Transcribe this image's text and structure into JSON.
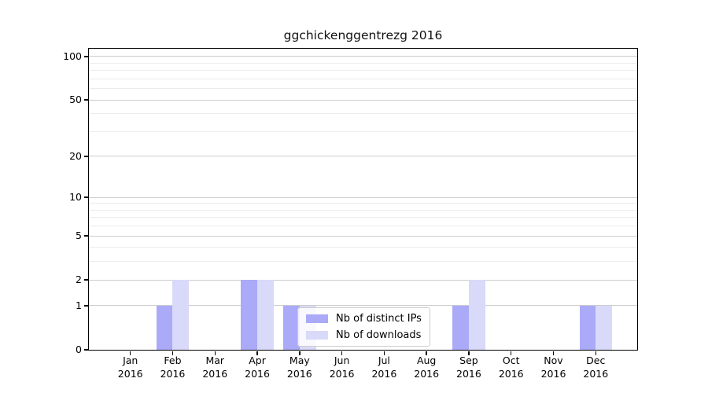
{
  "chart_data": {
    "type": "bar",
    "title": "ggchickenggentrezg 2016",
    "year": "2016",
    "categories": [
      "Jan",
      "Feb",
      "Mar",
      "Apr",
      "May",
      "Jun",
      "Jul",
      "Aug",
      "Sep",
      "Oct",
      "Nov",
      "Dec"
    ],
    "series": [
      {
        "name": "Nb of distinct IPs",
        "color": "#aaaaf8",
        "values": [
          0,
          1,
          0,
          2,
          1,
          0,
          0,
          0,
          1,
          0,
          0,
          1
        ]
      },
      {
        "name": "Nb of downloads",
        "color": "#d9d9f9",
        "values": [
          0,
          2,
          0,
          2,
          1,
          0,
          0,
          0,
          2,
          0,
          0,
          1
        ]
      }
    ],
    "y_axis": {
      "scale": "log1p",
      "lim": [
        0,
        113
      ],
      "major_ticks": [
        0,
        1,
        2,
        5,
        10,
        20,
        50,
        100
      ],
      "minor_ticks": [
        3,
        4,
        6,
        7,
        8,
        9,
        30,
        40,
        60,
        70,
        80,
        90
      ]
    },
    "grid": {
      "major_color": "#cdcdcd",
      "minor_color": "#ececec"
    },
    "legend": {
      "position": "lower-center-left"
    }
  }
}
